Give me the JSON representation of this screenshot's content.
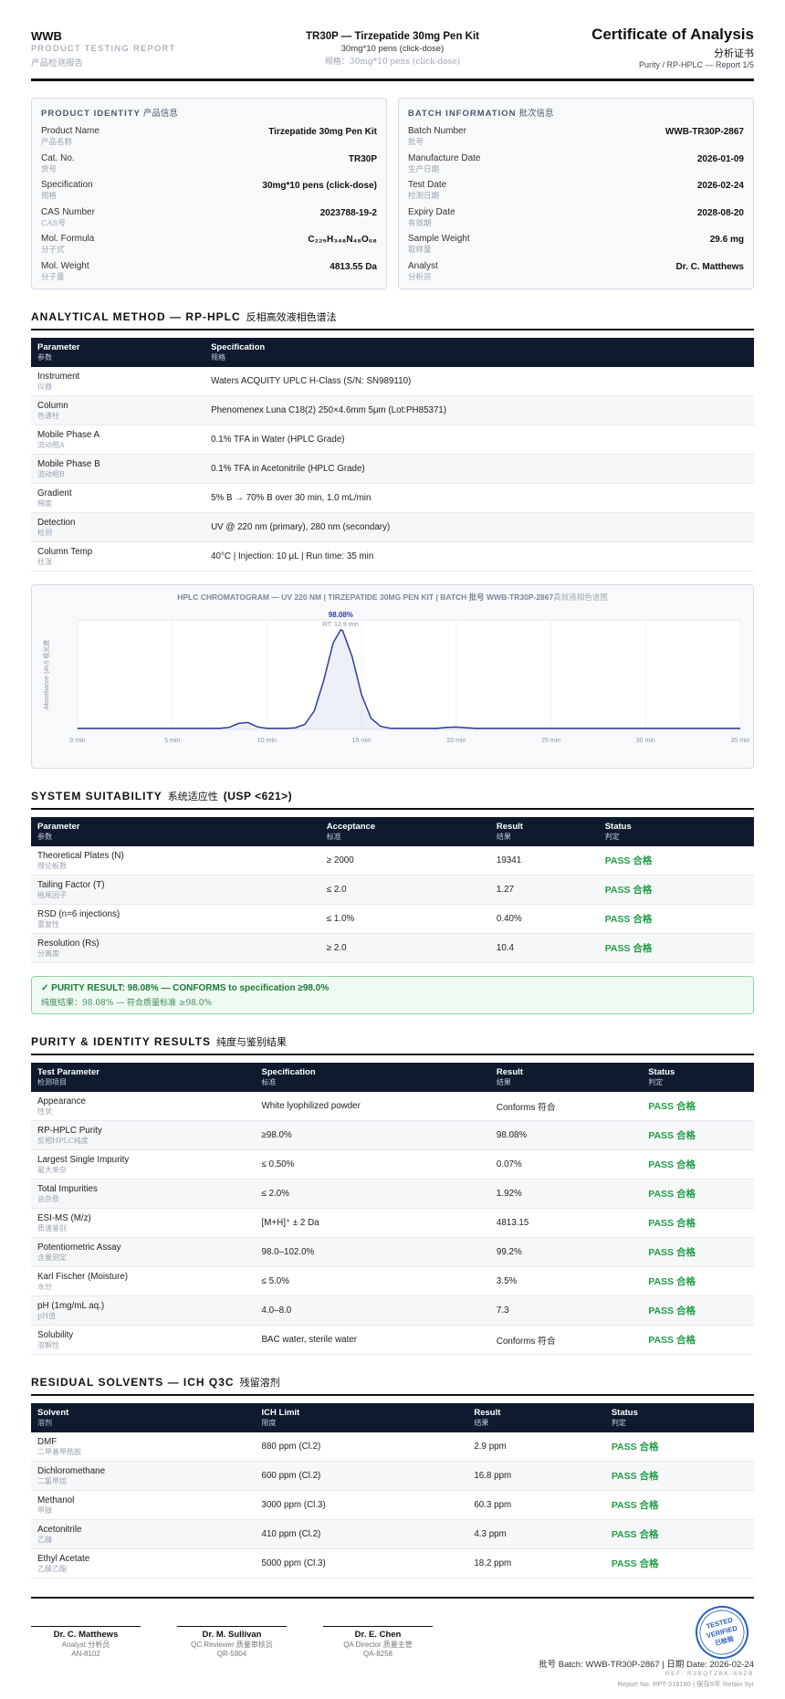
{
  "header": {
    "brand": "WWB",
    "subtitle": "PRODUCT TESTING REPORT",
    "subtitle_cn": "产品检测报告",
    "product_title": "TR30P — Tirzepatide 30mg Pen Kit",
    "product_spec": "30mg*10 pens (click-dose)",
    "product_spec_cn": "规格：30mg*10 pens (click-dose)",
    "doc_title": "Certificate of Analysis",
    "doc_title_cn": "分析证书",
    "doc_ref": "Purity / RP-HPLC — Report 1/5"
  },
  "product_identity": {
    "title": "PRODUCT IDENTITY",
    "title_cn": "产品信息",
    "rows": [
      {
        "label": "Product Name",
        "label_cn": "产品名称",
        "value": "Tirzepatide 30mg Pen Kit"
      },
      {
        "label": "Cat. No.",
        "label_cn": "货号",
        "value": "TR30P"
      },
      {
        "label": "Specification",
        "label_cn": "规格",
        "value": "30mg*10 pens (click-dose)"
      },
      {
        "label": "CAS Number",
        "label_cn": "CAS号",
        "value": "2023788-19-2"
      },
      {
        "label": "Mol. Formula",
        "label_cn": "分子式",
        "value": "C₂₂₅H₃₄₈N₄₈O₆₈"
      },
      {
        "label": "Mol. Weight",
        "label_cn": "分子量",
        "value": "4813.55 Da"
      }
    ]
  },
  "batch_info": {
    "title": "BATCH INFORMATION",
    "title_cn": "批次信息",
    "rows": [
      {
        "label": "Batch Number",
        "label_cn": "批号",
        "value": "WWB-TR30P-2867"
      },
      {
        "label": "Manufacture Date",
        "label_cn": "生产日期",
        "value": "2026-01-09"
      },
      {
        "label": "Test Date",
        "label_cn": "检测日期",
        "value": "2026-02-24"
      },
      {
        "label": "Expiry Date",
        "label_cn": "有效期",
        "value": "2028-08-20"
      },
      {
        "label": "Sample Weight",
        "label_cn": "取样量",
        "value": "29.6 mg"
      },
      {
        "label": "Analyst",
        "label_cn": "分析员",
        "value": "Dr. C. Matthews"
      }
    ]
  },
  "analytical_method": {
    "title": "ANALYTICAL METHOD — RP-HPLC",
    "title_cn": "反相高效液相色谱法",
    "columns": [
      {
        "label": "Parameter",
        "cn": "参数"
      },
      {
        "label": "Specification",
        "cn": "规格"
      }
    ],
    "rows": [
      {
        "name": "Instrument",
        "name_cn": "仪器",
        "cells": [
          "Waters ACQUITY UPLC H-Class (S/N: SN989110)"
        ]
      },
      {
        "name": "Column",
        "name_cn": "色谱柱",
        "cells": [
          "Phenomenex Luna C18(2) 250×4.6mm 5μm (Lot:PH85371)"
        ]
      },
      {
        "name": "Mobile Phase A",
        "name_cn": "流动相A",
        "cells": [
          "0.1% TFA in Water (HPLC Grade)"
        ]
      },
      {
        "name": "Mobile Phase B",
        "name_cn": "流动相B",
        "cells": [
          "0.1% TFA in Acetonitrile (HPLC Grade)"
        ]
      },
      {
        "name": "Gradient",
        "name_cn": "梯度",
        "cells": [
          "5% B → 70% B over 30 min, 1.0 mL/min"
        ]
      },
      {
        "name": "Detection",
        "name_cn": "检测",
        "cells": [
          "UV @ 220 nm (primary), 280 nm (secondary)"
        ]
      },
      {
        "name": "Column Temp",
        "name_cn": "柱温",
        "cells": [
          "40°C | Injection: 10 μL | Run time: 35 min"
        ]
      }
    ]
  },
  "chart_data": {
    "type": "line",
    "title": "HPLC CHROMATOGRAM — UV 220 NM | TIRZEPATIDE 30MG PEN KIT | BATCH 批号 WWB-TR30P-2867",
    "title_cn": "高效液相色谱图",
    "y_label": "Absorbance (AU) 吸光度",
    "peak_label": "98.08%",
    "peak_rt": "RT: 13.9 min",
    "x": [
      0,
      5,
      7.5,
      8,
      8.5,
      9,
      9.5,
      10,
      11,
      11.5,
      12,
      12.5,
      13,
      13.5,
      13.9,
      14,
      14.5,
      15,
      15.5,
      16,
      16.5,
      17,
      19,
      19.5,
      20,
      20.5,
      21,
      25,
      30,
      35
    ],
    "values": [
      1,
      1,
      1,
      1.8,
      5.5,
      6.3,
      2.3,
      1.1,
      1.1,
      1.5,
      4.6,
      16.8,
      44.8,
      79,
      91,
      90.2,
      66.4,
      31.7,
      10.2,
      2.8,
      1.2,
      1,
      1,
      1.8,
      2.2,
      1.6,
      1,
      1,
      1,
      1
    ],
    "color": "#2c3e9a",
    "grid": true,
    "xlim": [
      0,
      35
    ],
    "ylim": [
      0,
      100
    ],
    "xticks": [
      {
        "value": 0,
        "label": "0 min"
      },
      {
        "value": 5,
        "label": "5 min"
      },
      {
        "value": 10,
        "label": "10 min"
      },
      {
        "value": 15,
        "label": "15 min"
      },
      {
        "value": 20,
        "label": "20 min"
      },
      {
        "value": 25,
        "label": "25 min"
      },
      {
        "value": 30,
        "label": "30 min"
      },
      {
        "value": 35,
        "label": "35 min"
      }
    ]
  },
  "system_suitability": {
    "title": "SYSTEM SUITABILITY",
    "title_cn": "系统适应性",
    "title_ref": "(USP <621>)",
    "columns": [
      {
        "label": "Parameter",
        "cn": "参数"
      },
      {
        "label": "Acceptance",
        "cn": "标准"
      },
      {
        "label": "Result",
        "cn": "结果"
      },
      {
        "label": "Status",
        "cn": "判定"
      }
    ],
    "rows": [
      {
        "name": "Theoretical Plates (N)",
        "name_cn": "理论板数",
        "cells": [
          "≥ 2000",
          "19341",
          "PASS 合格"
        ]
      },
      {
        "name": "Tailing Factor (T)",
        "name_cn": "拖尾因子",
        "cells": [
          "≤ 2.0",
          "1.27",
          "PASS 合格"
        ]
      },
      {
        "name": "RSD (n=6 injections)",
        "name_cn": "重复性",
        "cells": [
          "≤ 1.0%",
          "0.40%",
          "PASS 合格"
        ]
      },
      {
        "name": "Resolution (Rs)",
        "name_cn": "分离度",
        "cells": [
          "≥ 2.0",
          "10.4",
          "PASS 合格"
        ]
      }
    ]
  },
  "purity_result": {
    "text": "✓ PURITY RESULT: 98.08% — CONFORMS to specification ≥98.0%",
    "text_cn": "纯度结果：98.08% — 符合质量标准 ≥98.0%"
  },
  "purity_identity": {
    "title": "PURITY & IDENTITY RESULTS",
    "title_cn": "纯度与鉴别结果",
    "columns": [
      {
        "label": "Test Parameter",
        "cn": "检测项目"
      },
      {
        "label": "Specification",
        "cn": "标准"
      },
      {
        "label": "Result",
        "cn": "结果"
      },
      {
        "label": "Status",
        "cn": "判定"
      }
    ],
    "rows": [
      {
        "name": "Appearance",
        "name_cn": "性状",
        "cells": [
          "White lyophilized powder",
          "Conforms 符合",
          "PASS 合格"
        ]
      },
      {
        "name": "RP-HPLC Purity",
        "name_cn": "反相HPLC纯度",
        "cells": [
          "≥98.0%",
          "98.08%",
          "PASS 合格"
        ]
      },
      {
        "name": "Largest Single Impurity",
        "name_cn": "最大单杂",
        "cells": [
          "≤ 0.50%",
          "0.07%",
          "PASS 合格"
        ]
      },
      {
        "name": "Total Impurities",
        "name_cn": "总杂质",
        "cells": [
          "≤ 2.0%",
          "1.92%",
          "PASS 合格"
        ]
      },
      {
        "name": "ESI-MS (M/z)",
        "name_cn": "质谱鉴别",
        "cells": [
          "[M+H]⁺ ± 2 Da",
          "4813.15",
          "PASS 合格"
        ]
      },
      {
        "name": "Potentiometric Assay",
        "name_cn": "含量测定",
        "cells": [
          "98.0–102.0%",
          "99.2%",
          "PASS 合格"
        ]
      },
      {
        "name": "Karl Fischer (Moisture)",
        "name_cn": "水分",
        "cells": [
          "≤ 5.0%",
          "3.5%",
          "PASS 合格"
        ]
      },
      {
        "name": "pH (1mg/mL aq.)",
        "name_cn": "pH值",
        "cells": [
          "4.0–8.0",
          "7.3",
          "PASS 合格"
        ]
      },
      {
        "name": "Solubility",
        "name_cn": "溶解性",
        "cells": [
          "BAC water, sterile water",
          "Conforms 符合",
          "PASS 合格"
        ]
      }
    ]
  },
  "residual_solvents": {
    "title": "RESIDUAL SOLVENTS — ICH Q3C",
    "title_cn": "残留溶剂",
    "columns": [
      {
        "label": "Solvent",
        "cn": "溶剂"
      },
      {
        "label": "ICH Limit",
        "cn": "限度"
      },
      {
        "label": "Result",
        "cn": "结果"
      },
      {
        "label": "Status",
        "cn": "判定"
      }
    ],
    "rows": [
      {
        "name": "DMF",
        "name_cn": "二甲基甲酰胺",
        "cells": [
          "880 ppm (Cl.2)",
          "2.9 ppm",
          "PASS 合格"
        ]
      },
      {
        "name": "Dichloromethane",
        "name_cn": "二氯甲烷",
        "cells": [
          "600 ppm (Cl.2)",
          "16.8 ppm",
          "PASS 合格"
        ]
      },
      {
        "name": "Methanol",
        "name_cn": "甲醇",
        "cells": [
          "3000 ppm (Cl.3)",
          "60.3 ppm",
          "PASS 合格"
        ]
      },
      {
        "name": "Acetonitrile",
        "name_cn": "乙腈",
        "cells": [
          "410 ppm (Cl.2)",
          "4.3 ppm",
          "PASS 合格"
        ]
      },
      {
        "name": "Ethyl Acetate",
        "name_cn": "乙酸乙酯",
        "cells": [
          "5000 ppm (Cl.3)",
          "18.2 ppm",
          "PASS 合格"
        ]
      }
    ]
  },
  "signatures": [
    {
      "name": "Dr. C. Matthews",
      "role": "Analyst 分析员",
      "id": "AN-8102"
    },
    {
      "name": "Dr. M. Sullivan",
      "role": "QC Reviewer 质量审核员",
      "id": "QR-5804"
    },
    {
      "name": "Dr. E. Chen",
      "role": "QA Director 质量主管",
      "id": "QA-8258"
    }
  ],
  "stamp": [
    "TESTED",
    "VERIFIED",
    "已检验"
  ],
  "footer": {
    "batch_line": "批号 Batch: WWB-TR30P-2867 | 日期 Date: 2026-02-24",
    "ref_line": "REF: R3BQTZBK-SSZB",
    "report_line": "Report No: RPT-316180 | 保存5年 Retain 5yr"
  }
}
